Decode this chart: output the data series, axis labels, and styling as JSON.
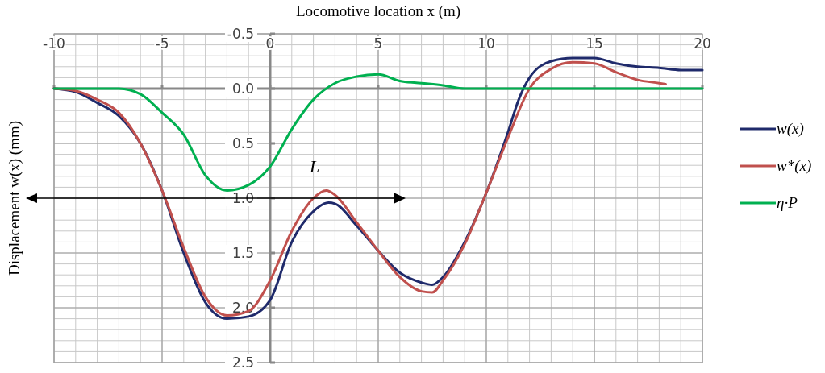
{
  "chart_data": {
    "type": "line",
    "xlabel": "Locomotive location x (m)",
    "ylabel": "Displacement w(x) (mm)",
    "xlim": [
      -10,
      20
    ],
    "xticks": [
      -10,
      -5,
      0,
      5,
      10,
      15,
      20
    ],
    "ylim": [
      2.5,
      -0.5
    ],
    "yticks": [
      {
        "value": -0.5,
        "label": "-0.5"
      },
      {
        "value": 0,
        "label": "0.0"
      },
      {
        "value": 0.5,
        "label": "0.5"
      },
      {
        "value": 1,
        "label": "1.0"
      },
      {
        "value": 1.5,
        "label": "1.5"
      },
      {
        "value": 2,
        "label": "2.0"
      },
      {
        "value": 2.5,
        "label": "2.5"
      }
    ],
    "grid": true,
    "legend": "right",
    "line_style": "solid",
    "marker": "none",
    "annotations": [
      "L"
    ],
    "series": [
      {
        "name": "w(x)",
        "color": "#1f2a6b",
        "x": [
          -10,
          -9,
          -8,
          -7,
          -6,
          -5,
          -4,
          -3,
          -2,
          -1,
          0,
          1,
          2,
          2.7,
          3,
          4,
          5,
          6,
          7,
          7.5,
          8,
          9,
          10,
          11,
          11.5,
          12,
          13,
          14,
          15,
          16,
          17,
          18,
          19,
          20
        ],
        "values": [
          0,
          0.03,
          0.13,
          0.25,
          0.5,
          0.93,
          1.5,
          1.95,
          2.1,
          2.08,
          1.93,
          1.4,
          1.12,
          1.04,
          1.05,
          1.25,
          1.48,
          1.68,
          1.77,
          1.79,
          1.72,
          1.4,
          0.95,
          0.4,
          0.1,
          -0.1,
          -0.25,
          -0.28,
          -0.28,
          -0.23,
          -0.2,
          -0.19,
          -0.17,
          -0.17
        ]
      },
      {
        "name": "w*(x)",
        "color": "#c0504d",
        "x": [
          -10,
          -9,
          -8,
          -7,
          -6,
          -5,
          -4,
          -3,
          -2,
          -1,
          0,
          1,
          2,
          2.6,
          3,
          4,
          5,
          6,
          7,
          7.5,
          8,
          9,
          10,
          11,
          12,
          13,
          14,
          15,
          16,
          17,
          18,
          18.3
        ],
        "values": [
          0,
          0.02,
          0.1,
          0.22,
          0.5,
          0.93,
          1.45,
          1.9,
          2.07,
          2.03,
          1.75,
          1.3,
          1,
          0.93,
          0.97,
          1.22,
          1.48,
          1.72,
          1.85,
          1.86,
          1.75,
          1.42,
          0.95,
          0.45,
          0,
          -0.18,
          -0.24,
          -0.23,
          -0.15,
          -0.08,
          -0.05,
          -0.04
        ]
      },
      {
        "name": "η·P",
        "color": "#00b050",
        "x": [
          -10,
          -9,
          -8,
          -7,
          -6,
          -5,
          -4,
          -3,
          -2,
          -1,
          0,
          1,
          2,
          3,
          4,
          5,
          6,
          7,
          8,
          9,
          10,
          12,
          14,
          16,
          18,
          20
        ],
        "values": [
          0,
          0,
          0,
          0,
          0.05,
          0.22,
          0.42,
          0.79,
          0.93,
          0.88,
          0.71,
          0.37,
          0.1,
          -0.05,
          -0.11,
          -0.13,
          -0.07,
          -0.05,
          -0.03,
          0,
          0,
          0,
          0,
          0,
          0,
          0
        ]
      }
    ]
  }
}
